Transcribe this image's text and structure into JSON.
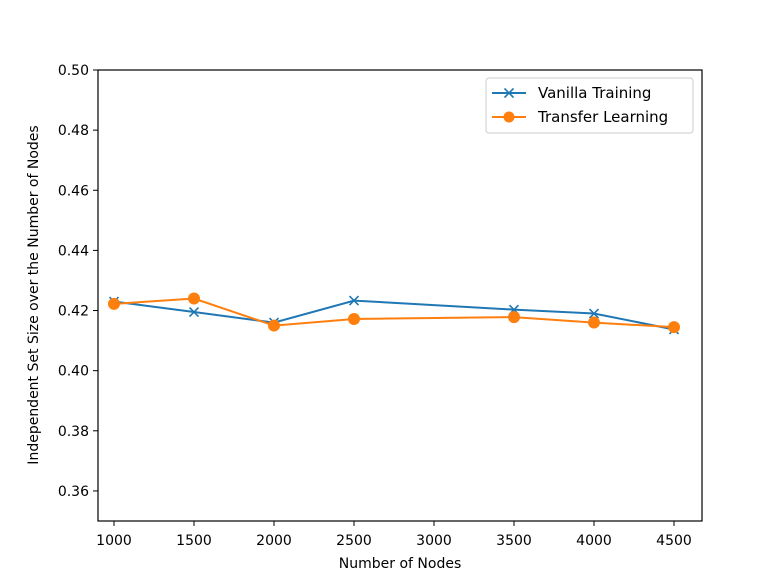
{
  "chart_data": {
    "type": "line",
    "title": "",
    "xlabel": "Number of Nodes",
    "ylabel": "Independent Set Size over the Number of Nodes",
    "xlim": [
      900,
      4675
    ],
    "ylim": [
      0.35,
      0.5
    ],
    "xticks": [
      1000,
      1500,
      2000,
      2500,
      3000,
      3500,
      4000,
      4500
    ],
    "yticks": [
      0.36,
      0.38,
      0.4,
      0.42,
      0.44,
      0.46,
      0.48,
      0.5
    ],
    "grid": false,
    "legend_position": "top-right",
    "series": [
      {
        "name": "Vanilla Training",
        "color": "#1f77b4",
        "marker": "x",
        "x": [
          1000,
          1500,
          2000,
          2500,
          3500,
          4000,
          4500
        ],
        "y": [
          0.423,
          0.4195,
          0.416,
          0.4233,
          0.4203,
          0.419,
          0.4137
        ]
      },
      {
        "name": "Transfer Learning",
        "color": "#ff7f0e",
        "marker": "circle",
        "x": [
          1000,
          1500,
          2000,
          2500,
          3500,
          4000,
          4500
        ],
        "y": [
          0.4222,
          0.424,
          0.415,
          0.4172,
          0.4178,
          0.416,
          0.4145
        ]
      }
    ]
  }
}
